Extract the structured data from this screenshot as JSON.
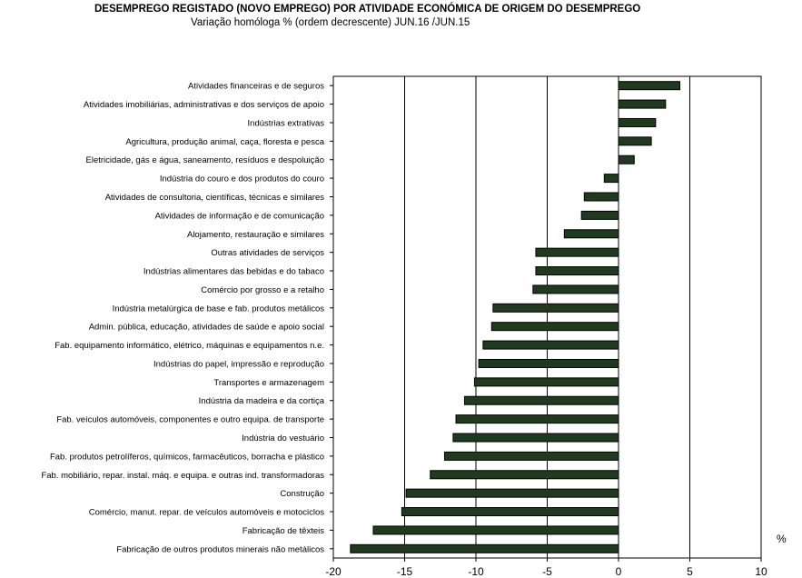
{
  "title": "DESEMPREGO REGISTADO (NOVO EMPREGO) POR ATIVIDADE ECONÓMICA DE ORIGEM DO DESEMPREGO",
  "subtitle": "Variação homóloga %   (ordem decrescente) JUN.16 /JUN.15",
  "chart_data": {
    "type": "bar",
    "orientation": "horizontal",
    "unit_label": "%",
    "xlim": [
      -20,
      10
    ],
    "xticks": [
      -20,
      -15,
      -10,
      -5,
      0,
      5,
      10
    ],
    "grid": "vertical",
    "bar_color": "#1f3a1f",
    "categories": [
      "Atividades financeiras e de seguros",
      "Atividades imobiliárias, administrativas e dos serviços de apoio",
      "Indústrias extrativas",
      "Agricultura, produção animal, caça, floresta e pesca",
      "Eletricidade, gás e água, saneamento, resíduos e despoluição",
      "Indústria do couro e dos produtos do couro",
      "Atividades de consultoria, científicas, técnicas e similares",
      "Atividades de informação e de comunicação",
      "Alojamento, restauração e similares",
      "Outras atividades de serviços",
      "Indústrias alimentares das bebidas e do tabaco",
      "Comércio por grosso e a retalho",
      "Indústria metalúrgica de base e fab. produtos metálicos",
      "Admin. pública, educação, atividades de saúde e apoio social",
      "Fab. equipamento informático, elétrico, máquinas e equipamentos n.e.",
      "Indústrias do papel, impressão e reprodução",
      "Transportes e armazenagem",
      "Indústria da madeira e da cortiça",
      "Fab. veículos automóveis, componentes e outro equipa. de transporte",
      "Indústria do vestuário",
      "Fab. produtos petrolíferos, químicos, farmacêuticos, borracha e plástico",
      "Fab. mobiliário, repar. instal. máq. e equipa. e outras ind. transformadoras",
      "Construção",
      "Comércio, manut. repar. de veículos automóveis e motociclos",
      "Fabricação de têxteis",
      "Fabricação de outros produtos minerais não metálicos"
    ],
    "values": [
      4.3,
      3.3,
      2.6,
      2.3,
      1.1,
      -1.0,
      -2.4,
      -2.6,
      -3.8,
      -5.8,
      -5.8,
      -6.0,
      -8.8,
      -8.9,
      -9.5,
      -9.8,
      -10.1,
      -10.8,
      -11.4,
      -11.6,
      -12.2,
      -13.2,
      -14.9,
      -15.2,
      -17.2,
      -18.8
    ]
  }
}
